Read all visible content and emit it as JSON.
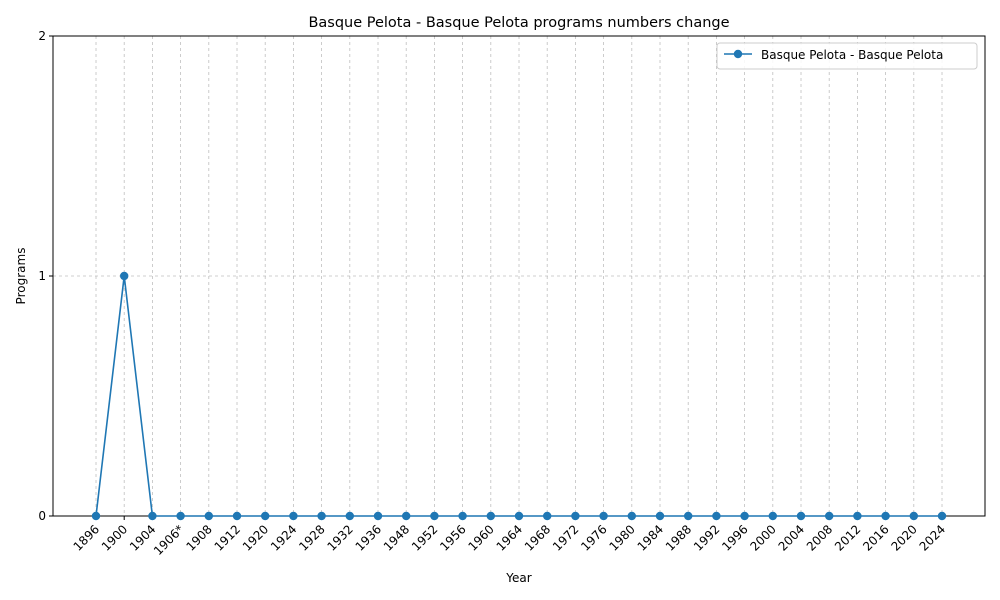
{
  "chart_data": {
    "type": "line",
    "title": "Basque Pelota - Basque Pelota programs numbers change",
    "xlabel": "Year",
    "ylabel": "Programs",
    "categories": [
      "1896",
      "1900",
      "1904",
      "1906*",
      "1908",
      "1912",
      "1920",
      "1924",
      "1928",
      "1932",
      "1936",
      "1948",
      "1952",
      "1956",
      "1960",
      "1964",
      "1968",
      "1972",
      "1976",
      "1980",
      "1984",
      "1988",
      "1992",
      "1996",
      "2000",
      "2004",
      "2008",
      "2012",
      "2016",
      "2020",
      "2024"
    ],
    "series": [
      {
        "name": "Basque Pelota - Basque Pelota",
        "values": [
          0,
          1,
          0,
          0,
          0,
          0,
          0,
          0,
          0,
          0,
          0,
          0,
          0,
          0,
          0,
          0,
          0,
          0,
          0,
          0,
          0,
          0,
          0,
          0,
          0,
          0,
          0,
          0,
          0,
          0,
          0
        ],
        "color": "#1f77b4",
        "marker": "circle"
      }
    ],
    "ylim": [
      0,
      2
    ],
    "yticks": [
      0,
      1,
      2
    ],
    "grid": true,
    "legend_position": "top-right"
  }
}
